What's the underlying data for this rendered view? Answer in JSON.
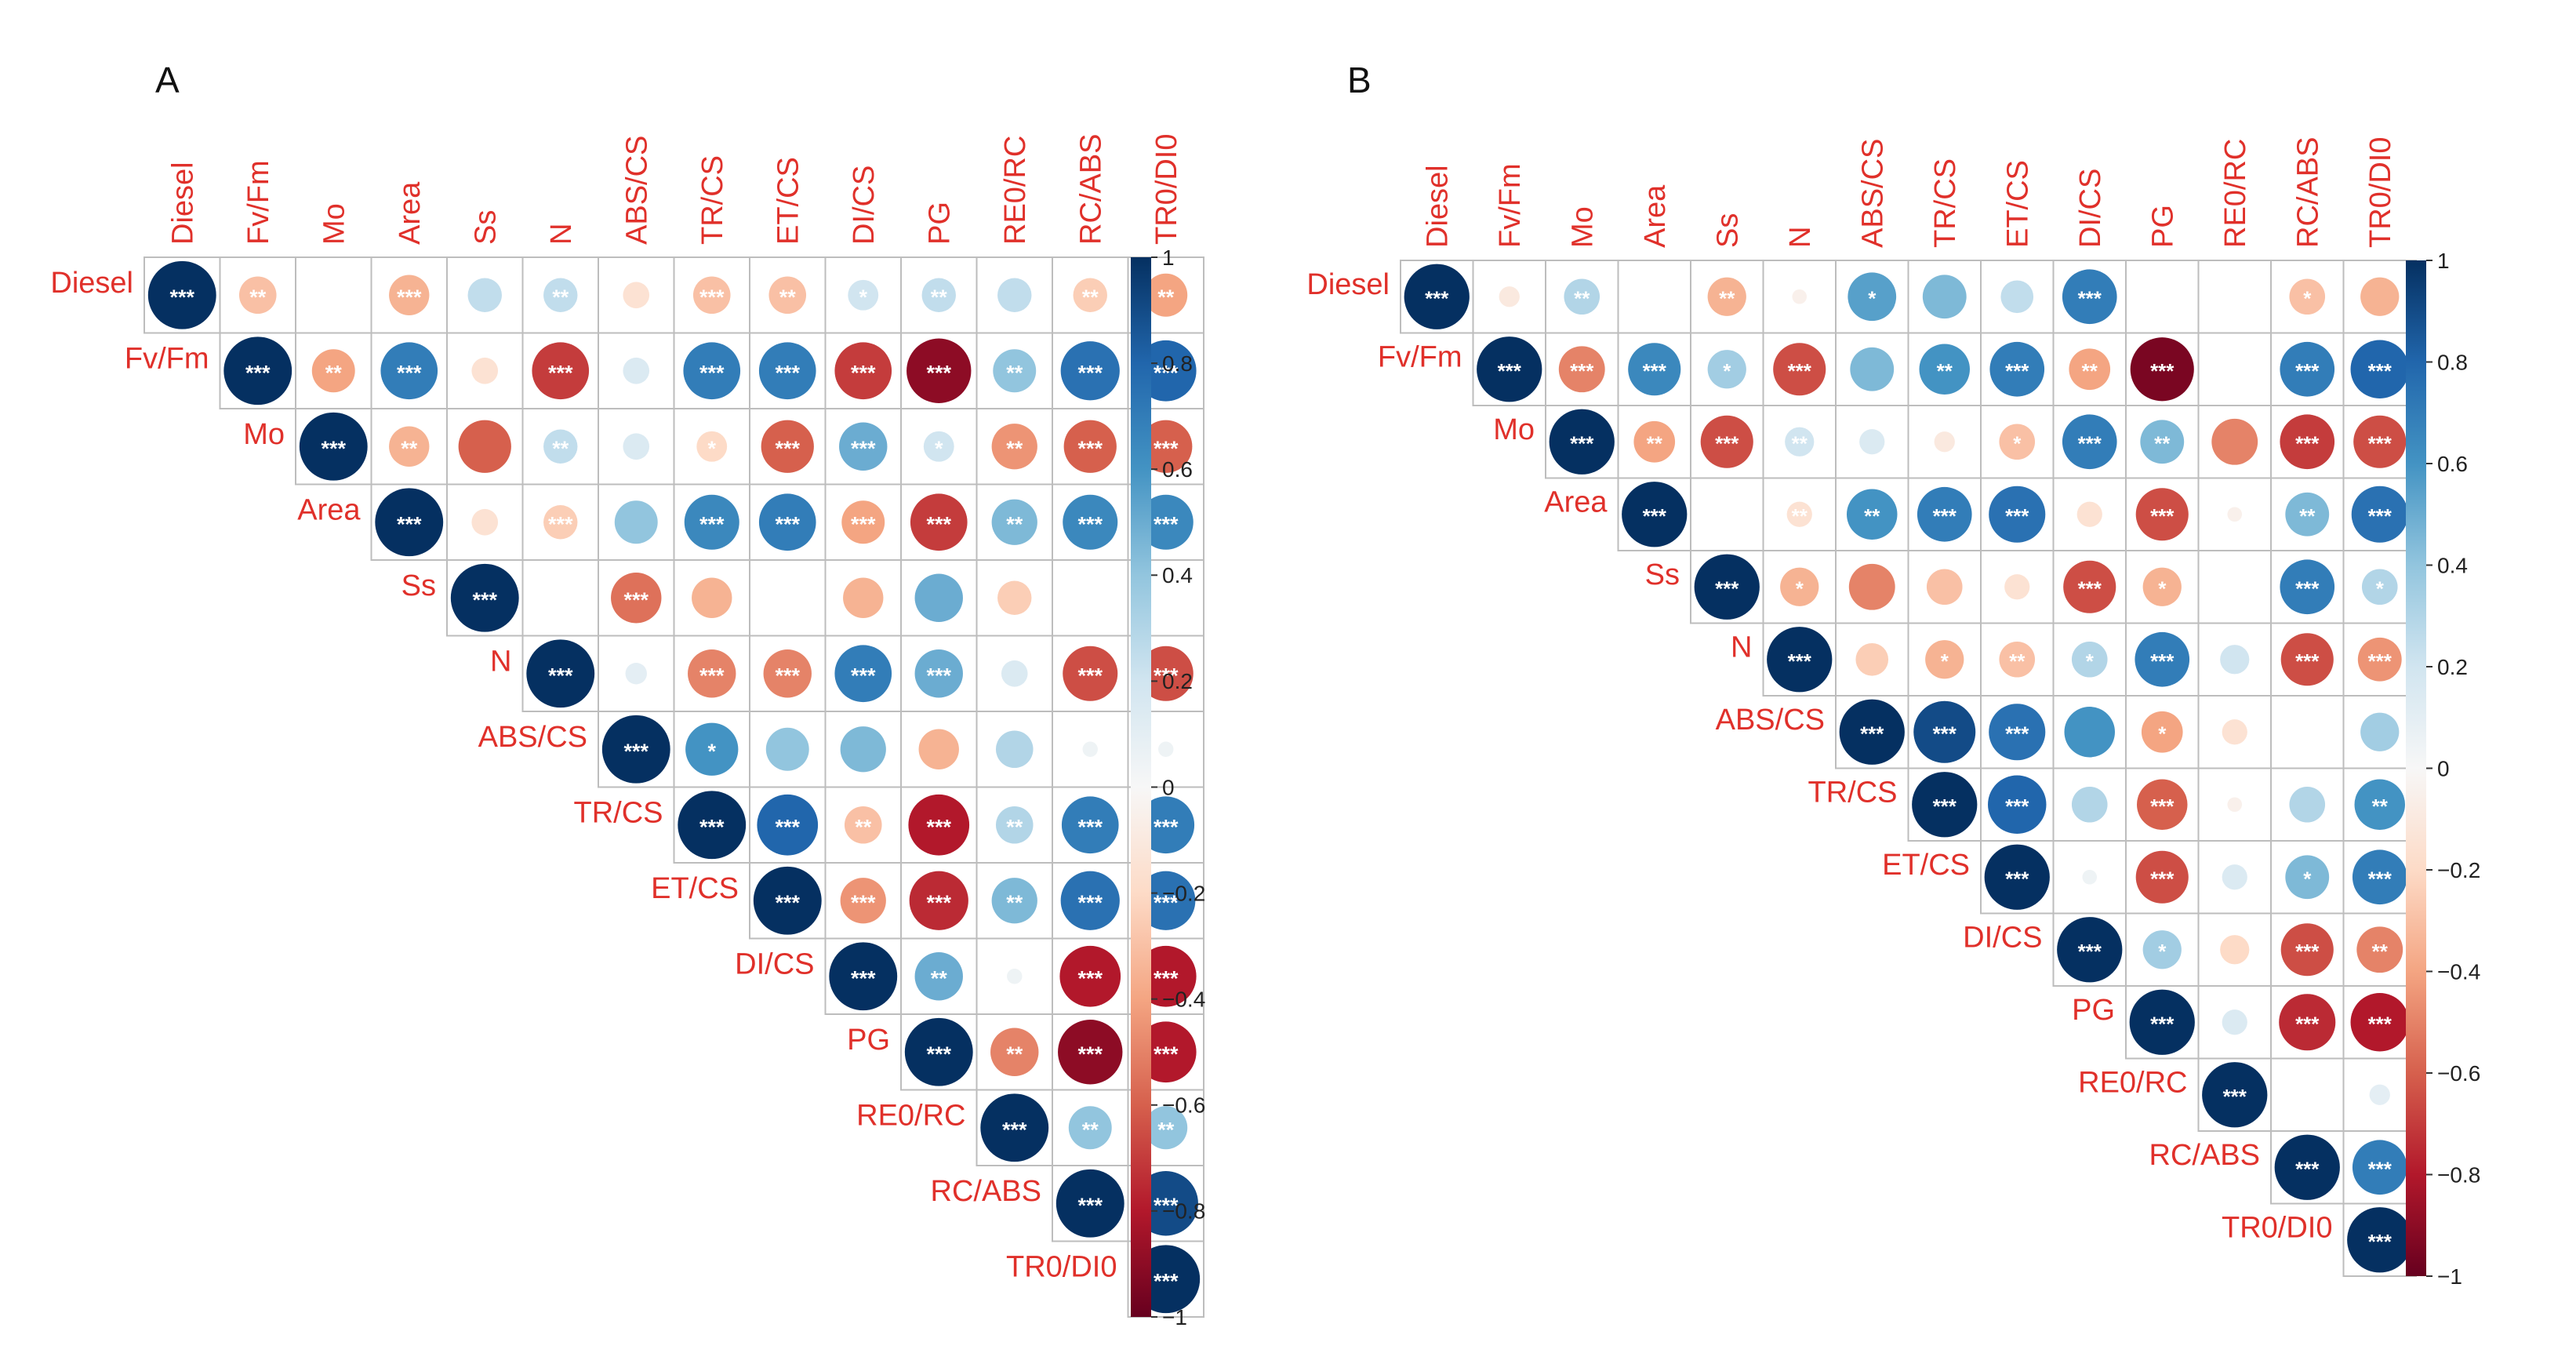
{
  "figure": {
    "colors": {
      "neg1": "#67001f",
      "neg08": "#b2182b",
      "neg06": "#d6604d",
      "neg04": "#f4a582",
      "neg02": "#fddbc7",
      "zero": "#f7f7f7",
      "pos02": "#d1e5f0",
      "pos04": "#92c5de",
      "pos06": "#4393c3",
      "pos08": "#2166ac",
      "pos1": "#053061",
      "label": "#e0302a",
      "grid": "#bdbdbd",
      "star": "#ffffff"
    }
  },
  "chart_data": [
    {
      "type": "heatmap",
      "title": "A",
      "variables": [
        "Diesel",
        "Fv/Fm",
        "Mo",
        "Area",
        "Ss",
        "N",
        "ABS/CS",
        "TR/CS",
        "ET/CS",
        "DI/CS",
        "PG",
        "RE0/RC",
        "RC/ABS",
        "TR0/DI0"
      ],
      "legend": {
        "min": -1,
        "max": 1,
        "ticks": [
          "1",
          "0.8",
          "0.6",
          "0.4",
          "0.2",
          "0",
          "−0.2",
          "−0.4",
          "−0.6",
          "−0.8",
          "−1"
        ],
        "tick_values": [
          1,
          0.8,
          0.6,
          0.4,
          0.2,
          0,
          -0.2,
          -0.4,
          -0.6,
          -0.8,
          -1
        ]
      },
      "matrix": [
        [
          1,
          -0.3,
          0,
          -0.35,
          0.25,
          0.25,
          -0.15,
          -0.3,
          -0.3,
          0.2,
          0.25,
          0.25,
          -0.25,
          -0.4
        ],
        [
          null,
          1,
          -0.4,
          0.7,
          -0.15,
          -0.7,
          0.15,
          0.7,
          0.7,
          -0.7,
          -0.9,
          0.4,
          0.75,
          0.8
        ],
        [
          null,
          null,
          1,
          -0.35,
          -0.6,
          0.25,
          0.15,
          -0.2,
          -0.6,
          0.5,
          0.2,
          -0.45,
          -0.6,
          -0.6
        ],
        [
          null,
          null,
          null,
          1,
          -0.15,
          -0.25,
          0.4,
          0.65,
          0.7,
          -0.4,
          -0.7,
          0.45,
          0.65,
          0.65
        ],
        [
          null,
          null,
          null,
          null,
          1,
          0,
          -0.55,
          -0.35,
          0,
          -0.35,
          0.5,
          -0.25,
          0,
          0
        ],
        [
          null,
          null,
          null,
          null,
          null,
          1,
          0.1,
          -0.5,
          -0.5,
          0.7,
          0.5,
          0.15,
          -0.65,
          -0.65
        ],
        [
          null,
          null,
          null,
          null,
          null,
          null,
          1,
          0.6,
          0.4,
          0.45,
          -0.35,
          0.3,
          0.05,
          0.05
        ],
        [
          null,
          null,
          null,
          null,
          null,
          null,
          null,
          1,
          0.8,
          -0.3,
          -0.8,
          0.3,
          0.7,
          0.7
        ],
        [
          null,
          null,
          null,
          null,
          null,
          null,
          null,
          null,
          1,
          -0.45,
          -0.75,
          0.45,
          0.75,
          0.75
        ],
        [
          null,
          null,
          null,
          null,
          null,
          null,
          null,
          null,
          null,
          1,
          0.5,
          0.05,
          -0.8,
          -0.8
        ],
        [
          null,
          null,
          null,
          null,
          null,
          null,
          null,
          null,
          null,
          null,
          1,
          -0.5,
          -0.9,
          -0.8
        ],
        [
          null,
          null,
          null,
          null,
          null,
          null,
          null,
          null,
          null,
          null,
          null,
          1,
          0.4,
          0.4
        ],
        [
          null,
          null,
          null,
          null,
          null,
          null,
          null,
          null,
          null,
          null,
          null,
          null,
          1,
          0.9
        ],
        [
          null,
          null,
          null,
          null,
          null,
          null,
          null,
          null,
          null,
          null,
          null,
          null,
          null,
          1
        ]
      ],
      "stars": [
        [
          "***",
          "**",
          "",
          "***",
          "",
          "**",
          "",
          "***",
          "**",
          "*",
          "**",
          "",
          "**",
          "**"
        ],
        [
          null,
          "***",
          "**",
          "***",
          "",
          "***",
          "",
          "***",
          "***",
          "***",
          "***",
          "**",
          "***",
          "***"
        ],
        [
          null,
          null,
          "***",
          "**",
          "",
          "**",
          "",
          "*",
          "***",
          "***",
          "*",
          "**",
          "***",
          "***"
        ],
        [
          null,
          null,
          null,
          "***",
          "",
          "***",
          "",
          "***",
          "***",
          "***",
          "***",
          "**",
          "***",
          "***"
        ],
        [
          null,
          null,
          null,
          null,
          "***",
          "",
          "***",
          "",
          "",
          "",
          "",
          "",
          "",
          ""
        ],
        [
          null,
          null,
          null,
          null,
          null,
          "***",
          "",
          "***",
          "***",
          "***",
          "***",
          "",
          "***",
          "***"
        ],
        [
          null,
          null,
          null,
          null,
          null,
          null,
          "***",
          "*",
          "",
          "",
          "",
          "",
          "",
          ""
        ],
        [
          null,
          null,
          null,
          null,
          null,
          null,
          null,
          "***",
          "***",
          "**",
          "***",
          "**",
          "***",
          "***"
        ],
        [
          null,
          null,
          null,
          null,
          null,
          null,
          null,
          null,
          "***",
          "***",
          "***",
          "**",
          "***",
          "***"
        ],
        [
          null,
          null,
          null,
          null,
          null,
          null,
          null,
          null,
          null,
          "***",
          "**",
          "",
          "***",
          "***"
        ],
        [
          null,
          null,
          null,
          null,
          null,
          null,
          null,
          null,
          null,
          null,
          "***",
          "**",
          "***",
          "***"
        ],
        [
          null,
          null,
          null,
          null,
          null,
          null,
          null,
          null,
          null,
          null,
          null,
          "***",
          "**",
          "**"
        ],
        [
          null,
          null,
          null,
          null,
          null,
          null,
          null,
          null,
          null,
          null,
          null,
          null,
          "***",
          "***"
        ],
        [
          null,
          null,
          null,
          null,
          null,
          null,
          null,
          null,
          null,
          null,
          null,
          null,
          null,
          "***"
        ]
      ]
    },
    {
      "type": "heatmap",
      "title": "B",
      "variables": [
        "Diesel",
        "Fv/Fm",
        "Mo",
        "Area",
        "Ss",
        "N",
        "ABS/CS",
        "TR/CS",
        "ET/CS",
        "DI/CS",
        "PG",
        "RE0/RC",
        "RC/ABS",
        "TR0/DI0"
      ],
      "legend": {
        "min": -1,
        "max": 1,
        "ticks": [
          "1",
          "0.8",
          "0.6",
          "0.4",
          "0.2",
          "0",
          "−0.2",
          "−0.4",
          "−0.6",
          "−0.8",
          "−1"
        ],
        "tick_values": [
          1,
          0.8,
          0.6,
          0.4,
          0.2,
          0,
          -0.2,
          -0.4,
          -0.6,
          -0.8,
          -1
        ]
      },
      "matrix": [
        [
          1,
          -0.1,
          0.3,
          0,
          -0.35,
          -0.05,
          0.55,
          0.45,
          0.25,
          0.7,
          0,
          0,
          -0.3,
          -0.35
        ],
        [
          null,
          1,
          -0.5,
          0.65,
          0.35,
          -0.65,
          0.45,
          0.6,
          0.7,
          -0.4,
          -0.95,
          0,
          0.7,
          0.8
        ],
        [
          null,
          null,
          1,
          -0.4,
          -0.65,
          0.2,
          0.15,
          -0.1,
          -0.3,
          0.7,
          0.45,
          -0.5,
          -0.7,
          -0.65
        ],
        [
          null,
          null,
          null,
          1,
          0,
          -0.15,
          0.6,
          0.7,
          0.75,
          -0.15,
          -0.65,
          -0.05,
          0.45,
          0.75
        ],
        [
          null,
          null,
          null,
          null,
          1,
          -0.35,
          -0.5,
          -0.3,
          -0.15,
          -0.65,
          -0.35,
          0,
          0.7,
          0.3
        ],
        [
          null,
          null,
          null,
          null,
          null,
          1,
          -0.25,
          -0.35,
          -0.3,
          0.3,
          0.7,
          0.2,
          -0.65,
          -0.45
        ],
        [
          null,
          null,
          null,
          null,
          null,
          null,
          1,
          0.9,
          0.75,
          0.6,
          -0.4,
          -0.15,
          0,
          0.35
        ],
        [
          null,
          null,
          null,
          null,
          null,
          null,
          null,
          1,
          0.8,
          0.3,
          -0.6,
          -0.05,
          0.3,
          0.6
        ],
        [
          null,
          null,
          null,
          null,
          null,
          null,
          null,
          null,
          1,
          0.05,
          -0.65,
          0.15,
          0.45,
          0.7
        ],
        [
          null,
          null,
          null,
          null,
          null,
          null,
          null,
          null,
          null,
          1,
          0.35,
          -0.2,
          -0.65,
          -0.5
        ],
        [
          null,
          null,
          null,
          null,
          null,
          null,
          null,
          null,
          null,
          null,
          1,
          0.15,
          -0.75,
          -0.8
        ],
        [
          null,
          null,
          null,
          null,
          null,
          null,
          null,
          null,
          null,
          null,
          null,
          1,
          0,
          0.1
        ],
        [
          null,
          null,
          null,
          null,
          null,
          null,
          null,
          null,
          null,
          null,
          null,
          null,
          1,
          0.7
        ],
        [
          null,
          null,
          null,
          null,
          null,
          null,
          null,
          null,
          null,
          null,
          null,
          null,
          null,
          1
        ]
      ],
      "stars": [
        [
          "***",
          "",
          "**",
          "",
          "**",
          "",
          "*",
          "",
          "",
          "***",
          "",
          "",
          "*",
          ""
        ],
        [
          null,
          "***",
          "***",
          "***",
          "*",
          "***",
          "",
          "**",
          "***",
          "**",
          "***",
          "",
          "***",
          "***"
        ],
        [
          null,
          null,
          "***",
          "**",
          "***",
          "**",
          "",
          "",
          "*",
          "***",
          "**",
          "",
          "***",
          "***"
        ],
        [
          null,
          null,
          null,
          "***",
          "",
          "**",
          "**",
          "***",
          "***",
          "",
          "***",
          "",
          "**",
          "***"
        ],
        [
          null,
          null,
          null,
          null,
          "***",
          "*",
          "",
          "",
          "",
          "***",
          "*",
          "",
          "***",
          "*"
        ],
        [
          null,
          null,
          null,
          null,
          null,
          "***",
          "",
          "*",
          "**",
          "*",
          "***",
          "",
          "***",
          "***"
        ],
        [
          null,
          null,
          null,
          null,
          null,
          null,
          "***",
          "***",
          "***",
          "",
          "*",
          "",
          "",
          ""
        ],
        [
          null,
          null,
          null,
          null,
          null,
          null,
          null,
          "***",
          "***",
          "",
          "***",
          "",
          "",
          "**"
        ],
        [
          null,
          null,
          null,
          null,
          null,
          null,
          null,
          null,
          "***",
          "",
          "***",
          "",
          "*",
          "***"
        ],
        [
          null,
          null,
          null,
          null,
          null,
          null,
          null,
          null,
          null,
          "***",
          "*",
          "",
          "***",
          "**"
        ],
        [
          null,
          null,
          null,
          null,
          null,
          null,
          null,
          null,
          null,
          null,
          "***",
          "",
          "***",
          "***"
        ],
        [
          null,
          null,
          null,
          null,
          null,
          null,
          null,
          null,
          null,
          null,
          null,
          "***",
          "",
          ""
        ],
        [
          null,
          null,
          null,
          null,
          null,
          null,
          null,
          null,
          null,
          null,
          null,
          null,
          "***",
          "***"
        ],
        [
          null,
          null,
          null,
          null,
          null,
          null,
          null,
          null,
          null,
          null,
          null,
          null,
          null,
          "***"
        ]
      ]
    }
  ]
}
